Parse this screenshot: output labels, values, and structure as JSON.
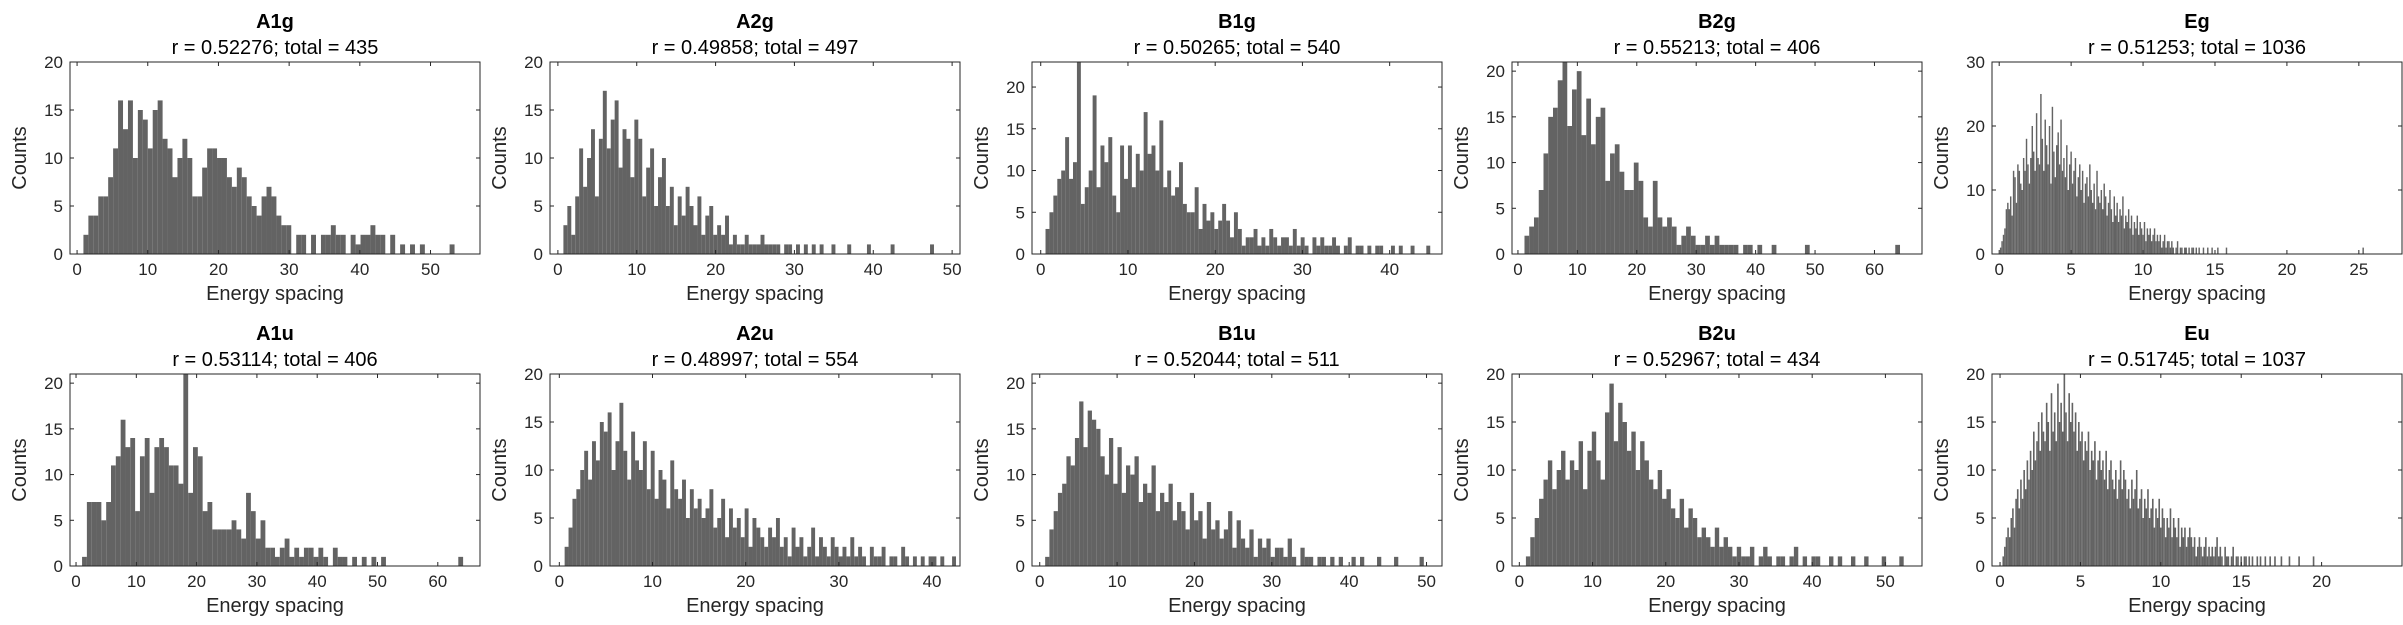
{
  "figure": {
    "bar_color": "#636363",
    "axis_color": "#262626"
  },
  "chart_data": [
    {
      "type": "bar",
      "title": "A1g",
      "subtitle": "r = 0.52276; total = 435",
      "xlabel": "Energy spacing",
      "ylabel": "Counts",
      "xlim": [
        -1,
        57
      ],
      "ylim": [
        0,
        20
      ],
      "xticks": [
        0,
        10,
        20,
        30,
        40,
        50
      ],
      "yticks": [
        0,
        5,
        10,
        15,
        20
      ],
      "bin_width": 0.7,
      "bin_start": 0.2,
      "values": [
        0,
        2,
        4,
        4,
        6,
        6,
        8,
        11,
        16,
        13,
        16,
        10,
        15,
        14,
        11,
        15,
        16,
        12,
        11,
        8,
        10,
        12,
        10,
        6,
        6,
        9,
        11,
        11,
        10,
        10,
        8,
        7,
        9,
        8,
        6,
        5,
        4,
        6,
        7,
        6,
        4,
        3,
        3,
        0,
        2,
        2,
        0,
        2,
        0,
        2,
        2,
        3,
        2,
        2,
        0,
        2,
        1,
        2,
        2,
        3,
        2,
        2,
        0,
        2,
        0,
        1,
        0,
        1,
        0,
        1,
        0,
        0,
        0,
        0,
        0,
        1,
        0,
        0,
        0
      ]
    },
    {
      "type": "bar",
      "title": "A2g",
      "subtitle": "r = 0.49858; total = 497",
      "xlabel": "Energy spacing",
      "ylabel": "Counts",
      "xlim": [
        -1,
        51
      ],
      "ylim": [
        0,
        20
      ],
      "xticks": [
        0,
        10,
        20,
        30,
        40,
        50
      ],
      "yticks": [
        0,
        5,
        10,
        15,
        20
      ],
      "bin_width": 0.5,
      "bin_start": 0.2,
      "values": [
        0,
        3,
        5,
        2,
        6,
        11,
        7,
        10,
        13,
        6,
        12,
        17,
        11,
        14,
        16,
        9,
        13,
        12,
        8,
        14,
        12,
        6,
        9,
        11,
        5,
        8,
        10,
        5,
        7,
        3,
        6,
        4,
        7,
        5,
        3,
        6,
        2,
        4,
        5,
        2,
        3,
        2,
        4,
        1,
        2,
        1,
        1,
        2,
        1,
        1,
        1,
        2,
        1,
        1,
        1,
        1,
        0,
        1,
        1,
        0,
        1,
        0,
        1,
        0,
        1,
        0,
        1,
        0,
        0,
        1,
        0,
        0,
        0,
        1,
        0,
        0,
        0,
        0,
        1,
        0,
        0,
        0,
        0,
        0,
        1,
        0,
        0,
        0,
        0,
        0,
        0,
        0,
        0,
        0,
        1
      ]
    },
    {
      "type": "bar",
      "title": "B1g",
      "subtitle": "r = 0.50265; total = 540",
      "xlabel": "Energy spacing",
      "ylabel": "Counts",
      "xlim": [
        -1,
        46
      ],
      "ylim": [
        0,
        23
      ],
      "xticks": [
        0,
        10,
        20,
        30,
        40
      ],
      "yticks": [
        0,
        5,
        10,
        15,
        20
      ],
      "bin_width": 0.45,
      "bin_start": 0.1,
      "values": [
        0,
        3,
        5,
        7,
        9,
        10,
        14,
        9,
        11,
        23,
        6,
        8,
        10,
        19,
        8,
        13,
        11,
        14,
        7,
        5,
        13,
        9,
        13,
        8,
        12,
        10,
        17,
        12,
        13,
        10,
        16,
        8,
        10,
        7,
        8,
        11,
        6,
        5,
        5,
        8,
        3,
        6,
        4,
        5,
        3,
        4,
        6,
        4,
        2,
        5,
        3,
        1,
        2,
        2,
        3,
        1,
        2,
        1,
        3,
        2,
        1,
        2,
        2,
        1,
        3,
        1,
        2,
        1,
        0,
        2,
        1,
        2,
        1,
        1,
        2,
        1,
        0,
        1,
        2,
        0,
        1,
        1,
        0,
        1,
        0,
        1,
        1,
        0,
        0,
        1,
        0,
        1,
        0,
        0,
        1,
        0,
        0,
        0,
        1,
        0,
        0
      ]
    },
    {
      "type": "bar",
      "title": "B2g",
      "subtitle": "r = 0.55213; total = 406",
      "xlabel": "Energy spacing",
      "ylabel": "Counts",
      "xlim": [
        -1,
        68
      ],
      "ylim": [
        0,
        21
      ],
      "xticks": [
        0,
        10,
        20,
        30,
        40,
        50,
        60
      ],
      "yticks": [
        0,
        5,
        10,
        15,
        20
      ],
      "bin_width": 0.8,
      "bin_start": 0.3,
      "values": [
        0,
        2,
        3,
        4,
        7,
        11,
        15,
        16,
        19,
        21,
        14,
        18,
        20,
        13,
        17,
        12,
        15,
        16,
        8,
        11,
        12,
        9,
        7,
        7,
        10,
        8,
        4,
        3,
        8,
        4,
        3,
        4,
        3,
        1,
        2,
        3,
        2,
        1,
        1,
        2,
        1,
        2,
        1,
        1,
        1,
        1,
        0,
        1,
        1,
        0,
        1,
        0,
        0,
        1,
        0,
        0,
        0,
        0,
        0,
        0,
        1,
        0,
        0,
        0,
        0,
        0,
        0,
        0,
        0,
        0,
        0,
        0,
        0,
        0,
        0,
        0,
        0,
        0,
        0,
        1
      ]
    },
    {
      "type": "bar",
      "title": "Eg",
      "subtitle": "r = 0.51253; total = 1036",
      "xlabel": "Energy spacing",
      "ylabel": "Counts",
      "xlim": [
        -0.5,
        28
      ],
      "ylim": [
        0,
        30
      ],
      "xticks": [
        0,
        5,
        10,
        15,
        20,
        25
      ],
      "yticks": [
        0,
        10,
        20,
        30
      ],
      "bin_width": 0.1,
      "bin_start": 0.05,
      "values": [
        1,
        2,
        3,
        4,
        7,
        8,
        7,
        9,
        6,
        13,
        12,
        8,
        14,
        13,
        11,
        10,
        15,
        13,
        18,
        14,
        11,
        15,
        20,
        16,
        13,
        22,
        15,
        14,
        25,
        18,
        13,
        21,
        17,
        14,
        20,
        11,
        23,
        16,
        12,
        17,
        19,
        14,
        21,
        13,
        15,
        12,
        17,
        10,
        14,
        16,
        11,
        13,
        15,
        9,
        12,
        14,
        10,
        13,
        8,
        11,
        12,
        9,
        14,
        10,
        8,
        11,
        7,
        13,
        9,
        8,
        10,
        7,
        11,
        9,
        6,
        8,
        10,
        7,
        5,
        9,
        6,
        8,
        5,
        7,
        6,
        9,
        4,
        6,
        5,
        7,
        4,
        6,
        3,
        5,
        4,
        6,
        3,
        5,
        4,
        3,
        5,
        2,
        4,
        3,
        4,
        2,
        3,
        4,
        2,
        3,
        2,
        3,
        1,
        2,
        3,
        1,
        2,
        2,
        1,
        2,
        1,
        0,
        1,
        2,
        0,
        1,
        1,
        0,
        1,
        1,
        0,
        1,
        0,
        1,
        1,
        0,
        1,
        0,
        1,
        0,
        0,
        1,
        0,
        0,
        1,
        0,
        0,
        1,
        0,
        0,
        0,
        1,
        0,
        0,
        0,
        0,
        0,
        1,
        0,
        0,
        0,
        0,
        0,
        0,
        0,
        0,
        0,
        0,
        0,
        0,
        0,
        0,
        0,
        0,
        0,
        0,
        0,
        0,
        0,
        0,
        0,
        0,
        0,
        0,
        0,
        0,
        0,
        0,
        0,
        0,
        0,
        0,
        0,
        0,
        0,
        0,
        0,
        0,
        0,
        0,
        0,
        0,
        0,
        0,
        0,
        0,
        0,
        0,
        0,
        0,
        0,
        0,
        0,
        0,
        0,
        0,
        0,
        0,
        0,
        0,
        0,
        0,
        0,
        0,
        0,
        0,
        0,
        0,
        0,
        0,
        0,
        0,
        0,
        0,
        0,
        0,
        0,
        0,
        0,
        0,
        0,
        0,
        0,
        0,
        0,
        0,
        0,
        0,
        0,
        0,
        0,
        0,
        1
      ]
    },
    {
      "type": "bar",
      "title": "A1u",
      "subtitle": "r = 0.53114; total = 406",
      "xlabel": "Energy spacing",
      "ylabel": "Counts",
      "xlim": [
        -1,
        67
      ],
      "ylim": [
        0,
        21
      ],
      "xticks": [
        0,
        10,
        20,
        30,
        40,
        50,
        60
      ],
      "yticks": [
        0,
        5,
        10,
        15,
        20
      ],
      "bin_width": 0.8,
      "bin_start": 0.2,
      "values": [
        0,
        1,
        7,
        7,
        7,
        5,
        7,
        11,
        12,
        16,
        13,
        14,
        6,
        12,
        14,
        8,
        13,
        14,
        13,
        11,
        11,
        9,
        21,
        8,
        13,
        12,
        6,
        7,
        4,
        4,
        4,
        4,
        5,
        4,
        3,
        8,
        6,
        3,
        5,
        2,
        2,
        1,
        2,
        3,
        1,
        2,
        1,
        2,
        2,
        1,
        2,
        1,
        0,
        2,
        1,
        1,
        0,
        1,
        0,
        1,
        0,
        1,
        0,
        1,
        0,
        0,
        0,
        0,
        0,
        0,
        0,
        0,
        0,
        0,
        0,
        0,
        0,
        0,
        0,
        1
      ]
    },
    {
      "type": "bar",
      "title": "A2u",
      "subtitle": "r = 0.48997; total = 554",
      "xlabel": "Energy spacing",
      "ylabel": "Counts",
      "xlim": [
        -1,
        43
      ],
      "ylim": [
        0,
        20
      ],
      "xticks": [
        0,
        10,
        20,
        30,
        40
      ],
      "yticks": [
        0,
        5,
        10,
        15,
        20
      ],
      "bin_width": 0.42,
      "bin_start": 0.15,
      "values": [
        0,
        2,
        4,
        7,
        8,
        10,
        12,
        9,
        13,
        11,
        15,
        14,
        16,
        10,
        13,
        17,
        12,
        9,
        14,
        11,
        10,
        13,
        8,
        12,
        7,
        10,
        9,
        6,
        11,
        8,
        7,
        9,
        5,
        8,
        6,
        7,
        5,
        6,
        8,
        4,
        5,
        7,
        3,
        6,
        4,
        5,
        3,
        6,
        2,
        5,
        4,
        3,
        2,
        4,
        3,
        5,
        2,
        3,
        1,
        4,
        2,
        3,
        1,
        2,
        4,
        1,
        3,
        2,
        1,
        3,
        2,
        1,
        2,
        1,
        3,
        1,
        2,
        1,
        0,
        2,
        1,
        1,
        2,
        0,
        1,
        1,
        0,
        2,
        1,
        0,
        1,
        0,
        1,
        0,
        1,
        1,
        0,
        1,
        0,
        0,
        1
      ]
    },
    {
      "type": "bar",
      "title": "B1u",
      "subtitle": "r = 0.52044; total = 511",
      "xlabel": "Energy spacing",
      "ylabel": "Counts",
      "xlim": [
        -1,
        52
      ],
      "ylim": [
        0,
        21
      ],
      "xticks": [
        0,
        10,
        20,
        30,
        40,
        50
      ],
      "yticks": [
        0,
        5,
        10,
        15,
        20
      ],
      "bin_width": 0.55,
      "bin_start": 0.15,
      "values": [
        0,
        1,
        4,
        6,
        8,
        9,
        12,
        11,
        14,
        18,
        13,
        17,
        16,
        15,
        12,
        10,
        14,
        9,
        13,
        8,
        11,
        10,
        12,
        7,
        9,
        8,
        11,
        6,
        8,
        7,
        9,
        5,
        7,
        6,
        4,
        8,
        5,
        6,
        3,
        7,
        4,
        5,
        3,
        4,
        6,
        2,
        5,
        3,
        2,
        4,
        1,
        3,
        2,
        3,
        1,
        2,
        2,
        1,
        3,
        1,
        0,
        2,
        1,
        1,
        0,
        1,
        1,
        0,
        1,
        0,
        1,
        0,
        0,
        1,
        0,
        1,
        0,
        0,
        0,
        1,
        0,
        0,
        0,
        1,
        0,
        0,
        0,
        0,
        0,
        1
      ]
    },
    {
      "type": "bar",
      "title": "B2u",
      "subtitle": "r = 0.52967; total = 434",
      "xlabel": "Energy spacing",
      "ylabel": "Counts",
      "xlim": [
        -1,
        55
      ],
      "ylim": [
        0,
        20
      ],
      "xticks": [
        0,
        10,
        20,
        30,
        40,
        50
      ],
      "yticks": [
        0,
        5,
        10,
        15,
        20
      ],
      "bin_width": 0.6,
      "bin_start": 0.3,
      "values": [
        0,
        1,
        3,
        5,
        7,
        9,
        11,
        8,
        10,
        12,
        9,
        11,
        10,
        13,
        8,
        12,
        14,
        11,
        9,
        16,
        19,
        13,
        17,
        15,
        12,
        14,
        10,
        13,
        11,
        9,
        8,
        10,
        7,
        8,
        6,
        5,
        7,
        4,
        6,
        5,
        3,
        4,
        3,
        2,
        4,
        2,
        3,
        2,
        1,
        2,
        1,
        1,
        2,
        0,
        1,
        2,
        1,
        0,
        1,
        1,
        0,
        1,
        2,
        0,
        1,
        0,
        1,
        1,
        0,
        0,
        1,
        0,
        1,
        0,
        0,
        1,
        0,
        0,
        1,
        0,
        0,
        0,
        1,
        0,
        0,
        0,
        1
      ]
    },
    {
      "type": "bar",
      "title": "Eu",
      "subtitle": "r = 0.51745; total = 1037",
      "xlabel": "Energy spacing",
      "ylabel": "Counts",
      "xlim": [
        -0.5,
        25
      ],
      "ylim": [
        0,
        20
      ],
      "xticks": [
        0,
        5,
        10,
        15,
        20
      ],
      "yticks": [
        0,
        5,
        10,
        15,
        20
      ],
      "bin_width": 0.1,
      "bin_start": 0.05,
      "values": [
        0,
        1,
        2,
        3,
        4,
        3,
        5,
        6,
        4,
        7,
        8,
        6,
        9,
        7,
        10,
        8,
        11,
        9,
        12,
        10,
        14,
        11,
        13,
        15,
        12,
        16,
        14,
        13,
        17,
        15,
        12,
        18,
        14,
        16,
        13,
        19,
        15,
        17,
        14,
        20,
        16,
        13,
        18,
        15,
        17,
        14,
        16,
        12,
        15,
        13,
        14,
        11,
        13,
        12,
        14,
        10,
        12,
        11,
        13,
        9,
        11,
        12,
        10,
        11,
        9,
        12,
        8,
        10,
        11,
        9,
        8,
        10,
        7,
        9,
        11,
        8,
        10,
        9,
        7,
        8,
        6,
        9,
        7,
        8,
        10,
        6,
        7,
        8,
        5,
        7,
        6,
        8,
        5,
        6,
        7,
        4,
        6,
        5,
        7,
        4,
        6,
        5,
        3,
        5,
        4,
        6,
        3,
        5,
        4,
        3,
        5,
        2,
        4,
        3,
        4,
        2,
        3,
        4,
        3,
        2,
        3,
        1,
        2,
        3,
        2,
        1,
        2,
        3,
        1,
        2,
        1,
        2,
        1,
        2,
        3,
        1,
        2,
        1,
        0,
        2,
        1,
        1,
        0,
        1,
        2,
        0,
        1,
        1,
        0,
        1,
        0,
        1,
        1,
        0,
        1,
        0,
        1,
        0,
        0,
        1,
        0,
        1,
        0,
        0,
        1,
        0,
        0,
        1,
        0,
        0,
        1,
        0,
        0,
        0,
        1,
        0,
        0,
        0,
        0,
        1,
        0,
        0,
        0,
        0,
        0,
        1,
        0,
        0,
        0,
        0,
        0,
        0,
        0,
        0,
        1,
        0,
        0,
        0,
        0,
        0,
        0,
        0,
        0,
        0,
        0,
        0,
        0,
        0,
        0,
        0,
        0,
        0,
        0,
        0,
        0,
        0,
        0,
        0,
        0,
        0,
        0,
        0,
        0,
        0,
        0,
        0,
        0,
        0,
        0,
        0,
        0,
        0,
        0,
        0,
        0
      ]
    }
  ]
}
